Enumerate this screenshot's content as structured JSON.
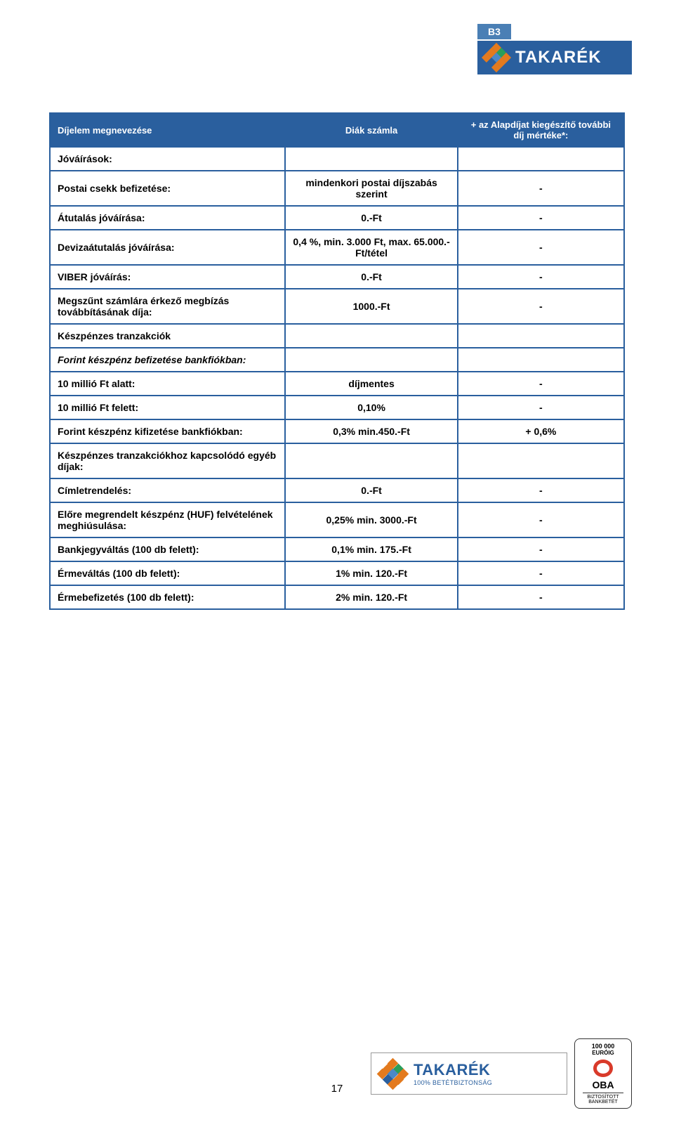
{
  "logo": {
    "b3": "B3",
    "brand": "TAKARÉK",
    "diamond_colors": [
      "#e37a1e",
      "#e37a1e",
      "#2a9e5a",
      "#e37a1e",
      "#4a88c7",
      "#e37a1e",
      "#2a5f9e",
      "#e37a1e",
      "#e37a1e"
    ]
  },
  "header": {
    "col1": "Díjelem megnevezése",
    "col2": "Diák számla",
    "col3": "+ az Alapdíjat kiegészítő további díj mértéke*:"
  },
  "rows": [
    {
      "c1": "Jóváírások:",
      "c2": "",
      "c3": "",
      "bold": true
    },
    {
      "c1": "Postai csekk befizetése:",
      "c2": "mindenkori postai díjszabás szerint",
      "c3": "-",
      "bold": true
    },
    {
      "c1": "Átutalás jóváírása:",
      "c2": "0.-Ft",
      "c3": "-",
      "bold": true
    },
    {
      "c1": "Devizaátutalás jóváírása:",
      "c2": "0,4 %, min. 3.000 Ft, max. 65.000.-Ft/tétel",
      "c3": "-",
      "bold": true
    },
    {
      "c1": "VIBER jóváírás:",
      "c2": "0.-Ft",
      "c3": "-",
      "bold": true
    },
    {
      "c1": "Megszűnt számlára érkező megbízás továbbításának díja:",
      "c2": "1000.-Ft",
      "c3": "-",
      "bold": true
    },
    {
      "c1": "Készpénzes tranzakciók",
      "c2": "",
      "c3": "",
      "bold": true
    },
    {
      "c1": "Forint készpénz befizetése bankfiókban:",
      "c2": "",
      "c3": "",
      "bold": true,
      "italic": true
    },
    {
      "c1": "10 millió Ft alatt:",
      "c2": "díjmentes",
      "c3": "-",
      "bold": true
    },
    {
      "c1": "10 millió Ft felett:",
      "c2": "0,10%",
      "c3": "-",
      "bold": true
    },
    {
      "c1": "Forint készpénz kifizetése bankfiókban:",
      "c2": "0,3% min.450.-Ft",
      "c3": "+ 0,6%",
      "bold": true
    },
    {
      "c1": "Készpénzes tranzakciókhoz kapcsolódó egyéb díjak:",
      "c2": "",
      "c3": "",
      "bold": true
    },
    {
      "c1": "Címletrendelés:",
      "c2": "0.-Ft",
      "c3": "-",
      "bold": true
    },
    {
      "c1": "Előre megrendelt készpénz (HUF) felvételének meghiúsulása:",
      "c2": "0,25% min. 3000.-Ft",
      "c3": "-",
      "bold": true
    },
    {
      "c1": "Bankjegyváltás (100 db felett):",
      "c2": "0,1% min. 175.-Ft",
      "c3": "-",
      "bold": true
    },
    {
      "c1": "Érmeváltás (100 db felett):",
      "c2": "1% min. 120.-Ft",
      "c3": "-",
      "bold": true
    },
    {
      "c1": "Érmebefizetés (100 db felett):",
      "c2": "2% min. 120.-Ft",
      "c3": "-",
      "bold": true
    }
  ],
  "page_number": "17",
  "footer": {
    "brand": "TAKARÉK",
    "tagline": "100% BETÉTBIZTONSÁG",
    "diamond_colors": [
      "#e37a1e",
      "#e37a1e",
      "#2a9e5a",
      "#e37a1e",
      "#4a88c7",
      "#e37a1e",
      "#2a5f9e",
      "#e37a1e",
      "#e37a1e"
    ],
    "oba": {
      "amount": "100 000",
      "currency": "EURÓIG",
      "label": "OBA",
      "line1": "BIZTOSÍTOTT",
      "line2": "BANKBETÉT"
    }
  }
}
